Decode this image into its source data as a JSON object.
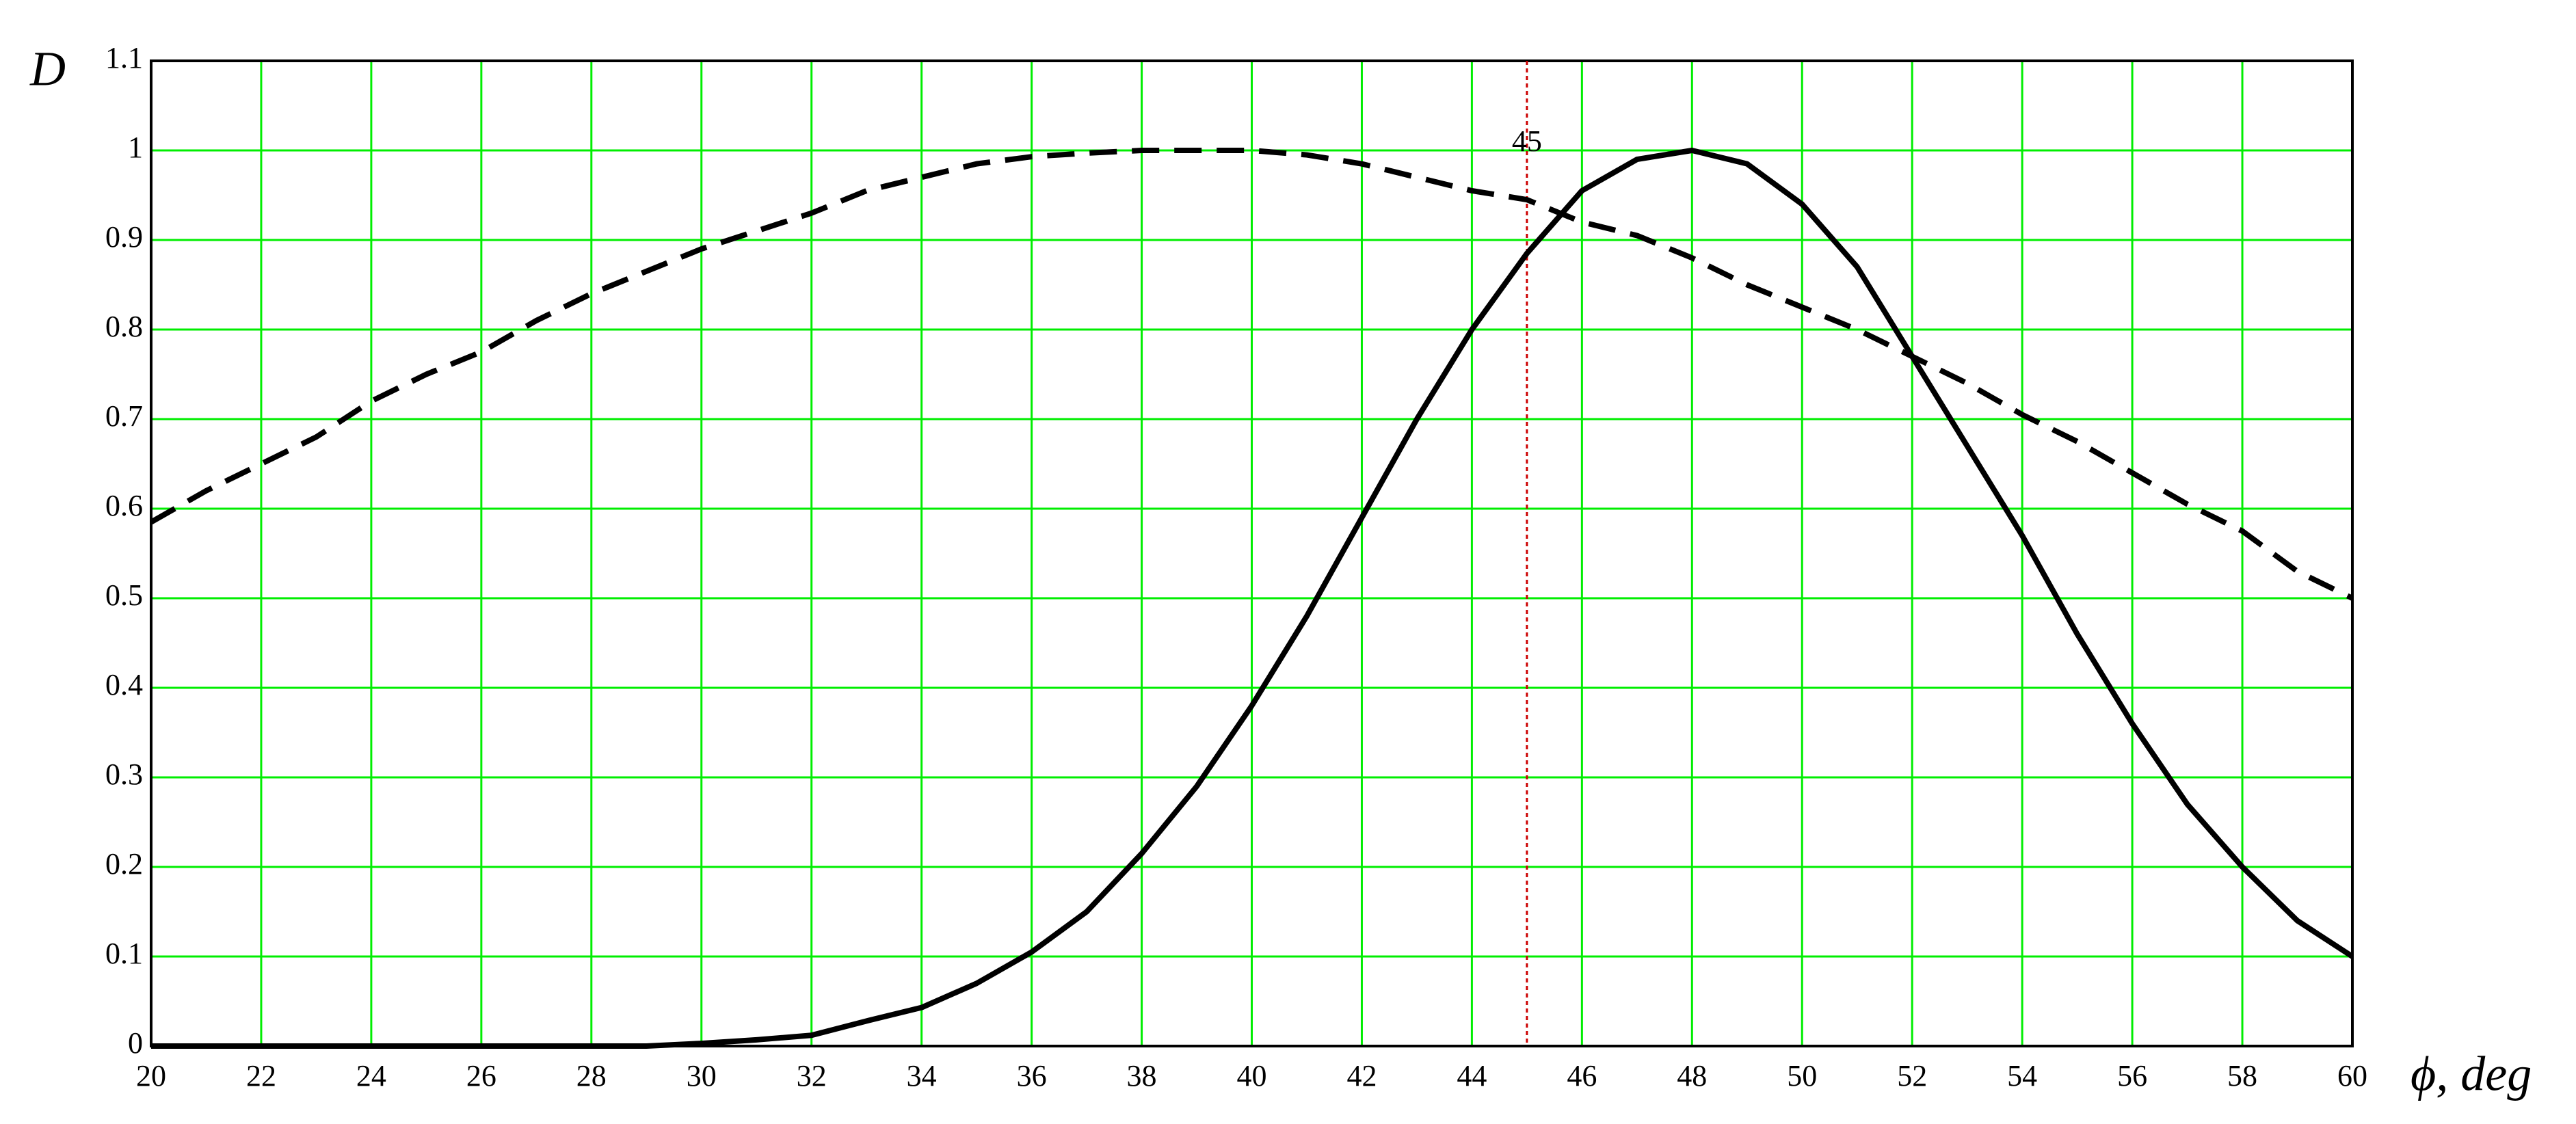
{
  "chart_data": {
    "type": "line",
    "y_label": "D",
    "x_label": "ϕ, deg",
    "x": [
      20,
      21,
      22,
      23,
      24,
      25,
      26,
      27,
      28,
      29,
      30,
      31,
      32,
      33,
      34,
      35,
      36,
      37,
      38,
      39,
      40,
      41,
      42,
      43,
      44,
      45,
      46,
      47,
      48,
      49,
      50,
      51,
      52,
      53,
      54,
      55,
      56,
      57,
      58,
      59,
      60
    ],
    "series": [
      {
        "color": "#000000",
        "dash": true,
        "values": [
          0.585,
          0.62,
          0.65,
          0.68,
          0.72,
          0.75,
          0.775,
          0.81,
          0.84,
          0.865,
          0.89,
          0.91,
          0.93,
          0.955,
          0.97,
          0.985,
          0.993,
          0.997,
          1.0,
          1.0,
          1.0,
          0.995,
          0.985,
          0.97,
          0.955,
          0.945,
          0.92,
          0.905,
          0.88,
          0.85,
          0.825,
          0.8,
          0.77,
          0.74,
          0.705,
          0.675,
          0.64,
          0.605,
          0.575,
          0.53,
          0.5
        ]
      },
      {
        "color": "#000000",
        "dash": false,
        "values": [
          0,
          0,
          0,
          0,
          0,
          0,
          0,
          0,
          0,
          0,
          0.003,
          0.007,
          0.012,
          0.028,
          0.043,
          0.07,
          0.105,
          0.15,
          0.215,
          0.29,
          0.38,
          0.48,
          0.59,
          0.7,
          0.8,
          0.885,
          0.955,
          0.99,
          1.0,
          0.985,
          0.94,
          0.87,
          0.77,
          0.67,
          0.57,
          0.46,
          0.36,
          0.27,
          0.2,
          0.14,
          0.1
        ]
      }
    ],
    "xlim": [
      20,
      60
    ],
    "ylim": [
      0,
      1.1
    ],
    "xticks": [
      20,
      22,
      24,
      26,
      28,
      30,
      32,
      34,
      36,
      38,
      40,
      42,
      44,
      46,
      48,
      50,
      52,
      54,
      56,
      58,
      60
    ],
    "yticks": [
      0,
      0.1,
      0.2,
      0.3,
      0.4,
      0.5,
      0.6,
      0.7,
      0.8,
      0.9,
      1,
      1.1
    ],
    "grid": true,
    "grid_color": "#00ee00",
    "vline": {
      "value": 45,
      "label": "45",
      "color": "#cc0000"
    }
  }
}
